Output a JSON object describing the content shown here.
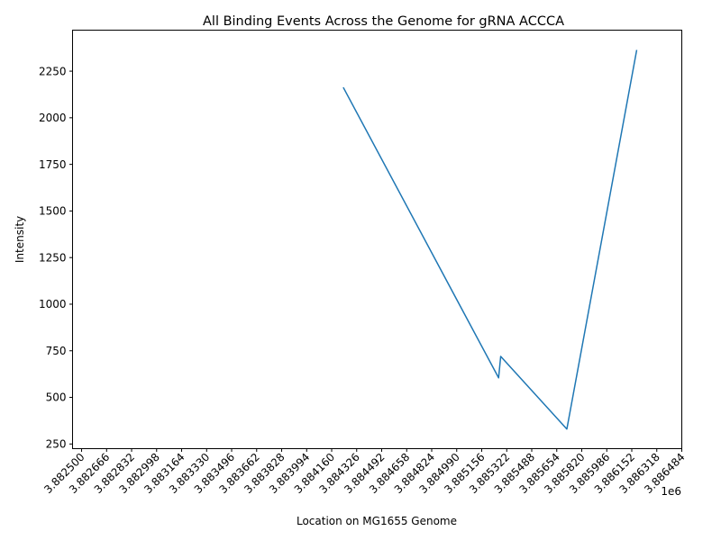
{
  "chart_data": {
    "type": "line",
    "title": "All Binding Events Across the Genome for gRNA ACCCA",
    "xlabel": "Location on MG1655 Genome",
    "ylabel": "Intensity",
    "x_offset_label": "1e6",
    "xlim": [
      3882440,
      3886484
    ],
    "ylim": [
      225,
      2470
    ],
    "x_ticks": [
      3882500,
      3882666,
      3882832,
      3882998,
      3883164,
      3883330,
      3883496,
      3883662,
      3883828,
      3883994,
      3884160,
      3884326,
      3884492,
      3884658,
      3884824,
      3884990,
      3885156,
      3885322,
      3885488,
      3885654,
      3885820,
      3885986,
      3886152,
      3886318,
      3886484
    ],
    "x_tick_labels": [
      "3.882500",
      "3.882666",
      "3.882832",
      "3.882998",
      "3.883164",
      "3.883330",
      "3.883496",
      "3.883662",
      "3.883828",
      "3.883994",
      "3.884160",
      "3.884326",
      "3.884492",
      "3.884658",
      "3.884824",
      "3.884990",
      "3.885156",
      "3.885322",
      "3.885488",
      "3.885654",
      "3.885820",
      "3.885986",
      "3.886152",
      "3.886318",
      "3.886484"
    ],
    "y_ticks": [
      250,
      500,
      750,
      1000,
      1250,
      1500,
      1750,
      2000,
      2250
    ],
    "y_tick_labels": [
      "250",
      "500",
      "750",
      "1000",
      "1250",
      "1500",
      "1750",
      "2000",
      "2250"
    ],
    "grid": false,
    "series": [
      {
        "color": "#1f77b4",
        "x": [
          3884239,
          3885268,
          3885282,
          3885721,
          3886184
        ],
        "y": [
          2160,
          605,
          720,
          330,
          2360
        ]
      }
    ]
  }
}
